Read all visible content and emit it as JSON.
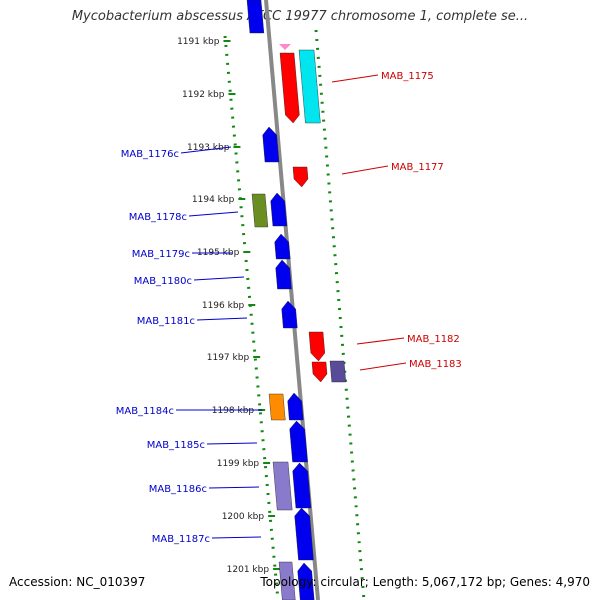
{
  "header": {
    "title": "Mycobacterium abscessus ATCC 19977 chromosome 1, complete se..."
  },
  "footer": {
    "accession": "Accession: NC_010397",
    "topology": "Topology: circular; Length: 5,067,172 bp; Genes: 4,970"
  },
  "colors": {
    "forward_gene": "#ff0000",
    "reverse_gene": "#0000ee",
    "forward_label": "#cc0000",
    "reverse_label": "#0000cc",
    "backbone": "#888888",
    "track_dots": "#118811",
    "cyan_gene": "#00e5ee",
    "olive_gene": "#6b8e23",
    "orange_gene": "#ff8c00",
    "slate_gene": "#5a4a9a",
    "lavender_gene": "#8a7acc",
    "pink_gene": "#ff88cc"
  },
  "ruler_ticks": [
    "1191 kbp",
    "1192 kbp",
    "1193 kbp",
    "1194 kbp",
    "1195 kbp",
    "1196 kbp",
    "1197 kbp",
    "1198 kbp",
    "1199 kbp",
    "1200 kbp",
    "1201 kbp"
  ],
  "gene_labels": {
    "forward": [
      "MAB_1175",
      "MAB_1177",
      "MAB_1182",
      "MAB_1183"
    ],
    "reverse": [
      "MAB_1176c",
      "MAB_1178c",
      "MAB_1179c",
      "MAB_1180c",
      "MAB_1181c",
      "MAB_1184c",
      "MAB_1185c",
      "MAB_1186c",
      "MAB_1187c"
    ]
  }
}
